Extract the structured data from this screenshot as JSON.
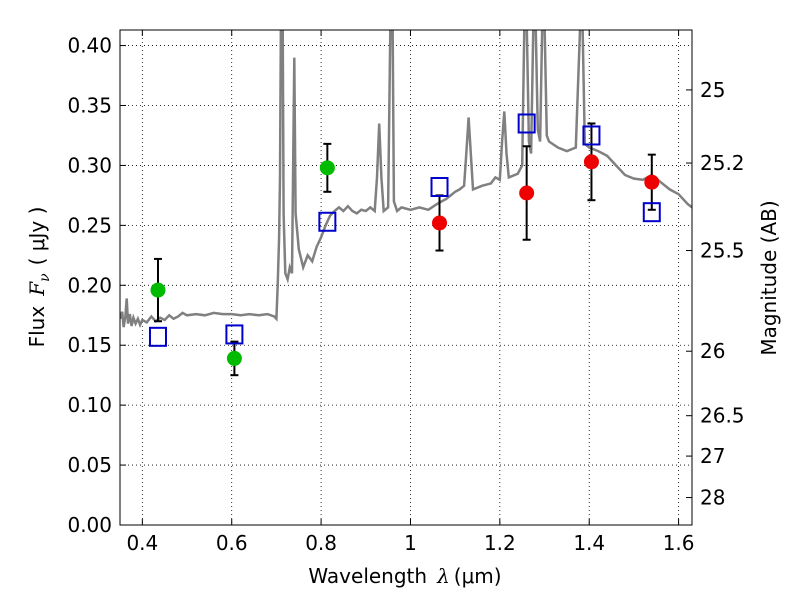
{
  "chart_data": {
    "type": "scatter",
    "xlabel_main": "Wavelength",
    "xlabel_symbol": "λ",
    "xlabel_unit": "(μm)",
    "ylabel_main": "Flux",
    "ylabel_symbol": "F",
    "ylabel_sub": "ν",
    "ylabel_unit": "( μJy )",
    "y2label": "Magnitude (AB)",
    "xlim": [
      0.35,
      1.63
    ],
    "ylim": [
      0.0,
      0.413
    ],
    "xticks": [
      0.4,
      0.6,
      0.8,
      1.0,
      1.2,
      1.4,
      1.6
    ],
    "xtick_labels": [
      "0.4",
      "0.6",
      "0.8",
      "1",
      "1.2",
      "1.4",
      "1.6"
    ],
    "yticks": [
      0.0,
      0.05,
      0.1,
      0.15,
      0.2,
      0.25,
      0.3,
      0.35,
      0.4
    ],
    "ytick_labels": [
      "0.00",
      "0.05",
      "0.10",
      "0.15",
      "0.20",
      "0.25",
      "0.30",
      "0.35",
      "0.40"
    ],
    "magnitude_ticks": [
      {
        "label": "25",
        "flux": 0.363
      },
      {
        "label": "25.2",
        "flux": 0.302
      },
      {
        "label": "25.5",
        "flux": 0.229
      },
      {
        "label": "26",
        "flux": 0.145
      },
      {
        "label": "26.5",
        "flux": 0.0912
      },
      {
        "label": "27",
        "flux": 0.0575
      },
      {
        "label": "28",
        "flux": 0.0229
      }
    ],
    "grid": true,
    "colors": {
      "model_spectrum": "#808080",
      "green_points": "#00bb00",
      "red_points": "#ee0000",
      "model_boxes": "#0000cc",
      "error_bars": "#000000"
    },
    "series": [
      {
        "marker": "green-circle",
        "points": [
          {
            "x": 0.435,
            "y": 0.196,
            "yerr": 0.026
          },
          {
            "x": 0.606,
            "y": 0.139,
            "yerr": 0.014
          },
          {
            "x": 0.814,
            "y": 0.298,
            "yerr": 0.02
          }
        ]
      },
      {
        "marker": "red-circle",
        "points": [
          {
            "x": 1.065,
            "y": 0.252,
            "yerr": 0.023
          },
          {
            "x": 1.26,
            "y": 0.277,
            "yerr": 0.039
          },
          {
            "x": 1.405,
            "y": 0.303,
            "yerr": 0.032
          },
          {
            "x": 1.54,
            "y": 0.286,
            "yerr": 0.023
          }
        ]
      },
      {
        "marker": "blue-open-square",
        "points": [
          {
            "x": 0.435,
            "y": 0.157
          },
          {
            "x": 0.606,
            "y": 0.159
          },
          {
            "x": 0.814,
            "y": 0.253
          },
          {
            "x": 1.065,
            "y": 0.282
          },
          {
            "x": 1.26,
            "y": 0.335
          },
          {
            "x": 1.405,
            "y": 0.325
          },
          {
            "x": 1.54,
            "y": 0.261
          }
        ]
      },
      {
        "marker": "gray-line",
        "points": [
          [
            0.35,
            0.172
          ],
          [
            0.355,
            0.178
          ],
          [
            0.358,
            0.165
          ],
          [
            0.362,
            0.174
          ],
          [
            0.365,
            0.189
          ],
          [
            0.368,
            0.168
          ],
          [
            0.372,
            0.176
          ],
          [
            0.376,
            0.166
          ],
          [
            0.38,
            0.173
          ],
          [
            0.385,
            0.168
          ],
          [
            0.39,
            0.172
          ],
          [
            0.395,
            0.167
          ],
          [
            0.4,
            0.171
          ],
          [
            0.41,
            0.169
          ],
          [
            0.42,
            0.174
          ],
          [
            0.43,
            0.17
          ],
          [
            0.44,
            0.173
          ],
          [
            0.45,
            0.171
          ],
          [
            0.46,
            0.175
          ],
          [
            0.47,
            0.172
          ],
          [
            0.48,
            0.174
          ],
          [
            0.49,
            0.177
          ],
          [
            0.5,
            0.175
          ],
          [
            0.52,
            0.176
          ],
          [
            0.54,
            0.175
          ],
          [
            0.56,
            0.177
          ],
          [
            0.58,
            0.176
          ],
          [
            0.6,
            0.176
          ],
          [
            0.62,
            0.175
          ],
          [
            0.64,
            0.176
          ],
          [
            0.66,
            0.175
          ],
          [
            0.68,
            0.176
          ],
          [
            0.695,
            0.174
          ],
          [
            0.7,
            0.172
          ],
          [
            0.703,
            0.2
          ],
          [
            0.706,
            0.24
          ],
          [
            0.708,
            0.29
          ],
          [
            0.71,
            0.42
          ],
          [
            0.714,
            0.42
          ],
          [
            0.716,
            0.26
          ],
          [
            0.72,
            0.21
          ],
          [
            0.725,
            0.205
          ],
          [
            0.73,
            0.215
          ],
          [
            0.735,
            0.21
          ],
          [
            0.74,
            0.39
          ],
          [
            0.743,
            0.26
          ],
          [
            0.75,
            0.23
          ],
          [
            0.76,
            0.215
          ],
          [
            0.77,
            0.225
          ],
          [
            0.78,
            0.22
          ],
          [
            0.79,
            0.232
          ],
          [
            0.8,
            0.24
          ],
          [
            0.81,
            0.25
          ],
          [
            0.82,
            0.258
          ],
          [
            0.83,
            0.262
          ],
          [
            0.84,
            0.265
          ],
          [
            0.85,
            0.262
          ],
          [
            0.86,
            0.266
          ],
          [
            0.87,
            0.262
          ],
          [
            0.88,
            0.26
          ],
          [
            0.89,
            0.263
          ],
          [
            0.9,
            0.262
          ],
          [
            0.91,
            0.265
          ],
          [
            0.92,
            0.262
          ],
          [
            0.925,
            0.29
          ],
          [
            0.93,
            0.335
          ],
          [
            0.935,
            0.29
          ],
          [
            0.94,
            0.262
          ],
          [
            0.95,
            0.265
          ],
          [
            0.955,
            0.42
          ],
          [
            0.96,
            0.42
          ],
          [
            0.963,
            0.27
          ],
          [
            0.97,
            0.262
          ],
          [
            0.98,
            0.265
          ],
          [
            1.0,
            0.263
          ],
          [
            1.02,
            0.265
          ],
          [
            1.04,
            0.263
          ],
          [
            1.06,
            0.268
          ],
          [
            1.08,
            0.272
          ],
          [
            1.09,
            0.275
          ],
          [
            1.1,
            0.278
          ],
          [
            1.11,
            0.28
          ],
          [
            1.12,
            0.283
          ],
          [
            1.125,
            0.31
          ],
          [
            1.13,
            0.34
          ],
          [
            1.135,
            0.31
          ],
          [
            1.14,
            0.28
          ],
          [
            1.16,
            0.283
          ],
          [
            1.18,
            0.285
          ],
          [
            1.19,
            0.29
          ],
          [
            1.2,
            0.288
          ],
          [
            1.205,
            0.32
          ],
          [
            1.21,
            0.345
          ],
          [
            1.215,
            0.31
          ],
          [
            1.22,
            0.29
          ],
          [
            1.24,
            0.293
          ],
          [
            1.25,
            0.3
          ],
          [
            1.255,
            0.42
          ],
          [
            1.26,
            0.42
          ],
          [
            1.265,
            0.32
          ],
          [
            1.27,
            0.31
          ],
          [
            1.275,
            0.42
          ],
          [
            1.28,
            0.42
          ],
          [
            1.285,
            0.33
          ],
          [
            1.29,
            0.32
          ],
          [
            1.295,
            0.42
          ],
          [
            1.3,
            0.42
          ],
          [
            1.305,
            0.325
          ],
          [
            1.31,
            0.32
          ],
          [
            1.33,
            0.315
          ],
          [
            1.35,
            0.312
          ],
          [
            1.37,
            0.315
          ],
          [
            1.38,
            0.42
          ],
          [
            1.385,
            0.42
          ],
          [
            1.39,
            0.318
          ],
          [
            1.4,
            0.315
          ],
          [
            1.42,
            0.312
          ],
          [
            1.44,
            0.308
          ],
          [
            1.46,
            0.3
          ],
          [
            1.48,
            0.292
          ],
          [
            1.5,
            0.289
          ],
          [
            1.52,
            0.288
          ],
          [
            1.54,
            0.292
          ],
          [
            1.56,
            0.286
          ],
          [
            1.58,
            0.28
          ],
          [
            1.6,
            0.276
          ],
          [
            1.62,
            0.268
          ],
          [
            1.63,
            0.265
          ]
        ]
      }
    ]
  }
}
